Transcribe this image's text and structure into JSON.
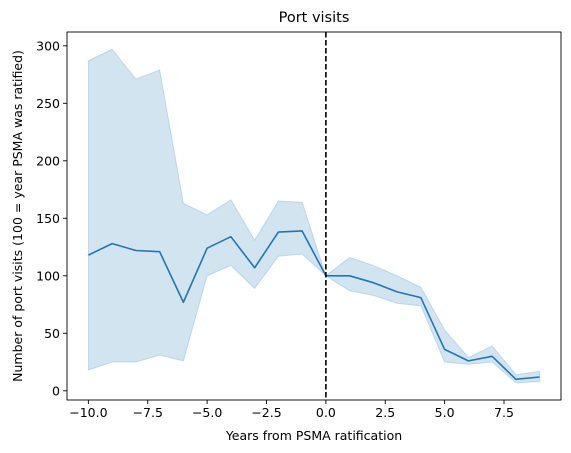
{
  "chart_data": {
    "type": "line",
    "title": "Port visits",
    "xlabel": "Years from PSMA ratification",
    "ylabel": "Number of port visits (100 = year PSMA was ratified)",
    "xlim": [
      -10.9,
      9.9
    ],
    "ylim": [
      -8,
      312
    ],
    "x_ticks": [
      -10.0,
      -7.5,
      -5.0,
      -2.5,
      0.0,
      2.5,
      5.0,
      7.5
    ],
    "x_tick_labels": [
      "−10.0",
      "−7.5",
      "−5.0",
      "−2.5",
      "0.0",
      "2.5",
      "5.0",
      "7.5"
    ],
    "y_ticks": [
      0,
      50,
      100,
      150,
      200,
      250,
      300
    ],
    "y_tick_labels": [
      "0",
      "50",
      "100",
      "150",
      "200",
      "250",
      "300"
    ],
    "grid": false,
    "line_color": "#1f77b4",
    "band_color": "#1f77b4",
    "vline": {
      "x": 0,
      "style": "dashed",
      "color": "#000000"
    },
    "series": [
      {
        "x": [
          -10,
          -9,
          -8,
          -7,
          -6,
          -5,
          -4,
          -3,
          -2,
          -1,
          0,
          1,
          2,
          3,
          4,
          5,
          6,
          7,
          8,
          9
        ],
        "values": [
          118,
          128,
          122,
          121,
          77,
          124,
          134,
          107,
          138,
          139,
          100,
          100,
          94,
          86,
          81,
          36,
          26,
          30,
          10,
          12
        ],
        "lower": [
          18,
          25,
          25,
          31,
          26,
          100,
          109,
          89,
          117,
          119,
          100,
          87,
          83,
          76,
          74,
          25,
          23,
          25,
          7,
          8
        ],
        "upper": [
          287,
          297,
          271,
          279,
          163,
          153,
          166,
          131,
          165,
          164,
          100,
          116,
          109,
          100,
          90,
          53,
          29,
          39,
          14,
          17
        ]
      }
    ]
  }
}
